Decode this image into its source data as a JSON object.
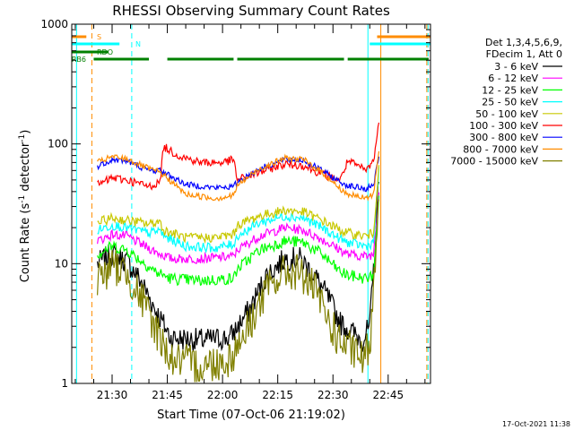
{
  "footer_timestamp": "17-Oct-2021 11:38",
  "chart_data": {
    "type": "line",
    "title": "RHESSI Observing Summary Count Rates",
    "xlabel": "Start Time (07-Oct-06 21:19:02)",
    "ylabel": "Count Rate (s⁻¹ detector⁻¹)",
    "ylabel_parts": {
      "base": "Count Rate (s",
      "sup1": "-1",
      "mid": " detector",
      "sup2": "-1",
      "end": ")"
    },
    "y_scale": "log",
    "ylim": [
      1,
      1000
    ],
    "xlim": [
      "21:19:02",
      "22:56:30"
    ],
    "x_ticks": [
      "21:30",
      "21:45",
      "22:00",
      "22:15",
      "22:30",
      "22:45"
    ],
    "y_ticks": [
      "1",
      "10",
      "100",
      "1000"
    ],
    "legend_header": [
      "Det 1,3,4,5,6,9,",
      "FDecim 1, Att 0"
    ],
    "legend_placement": "right",
    "series": [
      {
        "name": "3 - 6 keV",
        "color": "#000000",
        "noise": 0.1,
        "points": [
          [
            "21:26",
            10
          ],
          [
            "21:30",
            12
          ],
          [
            "21:34",
            10.5
          ],
          [
            "21:38",
            7
          ],
          [
            "21:42",
            4
          ],
          [
            "21:46",
            2.4
          ],
          [
            "21:54",
            2.3
          ],
          [
            "22:02",
            2.4
          ],
          [
            "22:07",
            4
          ],
          [
            "22:12",
            8
          ],
          [
            "22:17",
            11
          ],
          [
            "22:21",
            11
          ],
          [
            "22:25",
            8
          ],
          [
            "22:29",
            5
          ],
          [
            "22:32",
            3.2
          ],
          [
            "22:38",
            2.3
          ],
          [
            "22:40",
            3
          ],
          [
            "22:41.5",
            15
          ],
          [
            "22:42.5",
            60
          ]
        ]
      },
      {
        "name": "6 - 12 keV",
        "color": "#ff00ff",
        "noise": 0.04,
        "points": [
          [
            "21:26",
            15.5
          ],
          [
            "21:30",
            17.5
          ],
          [
            "21:34",
            17
          ],
          [
            "21:38",
            14.5
          ],
          [
            "21:42",
            12.5
          ],
          [
            "21:46",
            11
          ],
          [
            "21:54",
            11
          ],
          [
            "22:03",
            11.5
          ],
          [
            "22:04",
            13
          ],
          [
            "22:10",
            17
          ],
          [
            "22:17",
            20
          ],
          [
            "22:22",
            19
          ],
          [
            "22:27",
            16
          ],
          [
            "22:32",
            13
          ],
          [
            "22:34",
            12
          ],
          [
            "22:39",
            11.5
          ],
          [
            "22:41",
            12
          ],
          [
            "22:42.5",
            40
          ]
        ]
      },
      {
        "name": "12 - 25 keV",
        "color": "#00ff00",
        "noise": 0.05,
        "points": [
          [
            "21:26",
            12
          ],
          [
            "21:30",
            14
          ],
          [
            "21:34",
            13
          ],
          [
            "21:38",
            10.5
          ],
          [
            "21:42",
            8.5
          ],
          [
            "21:46",
            7.5
          ],
          [
            "21:54",
            7.2
          ],
          [
            "22:03",
            7.5
          ],
          [
            "22:04",
            9
          ],
          [
            "22:10",
            13
          ],
          [
            "22:17",
            15.5
          ],
          [
            "22:22",
            15
          ],
          [
            "22:27",
            12
          ],
          [
            "22:32",
            8.5
          ],
          [
            "22:34",
            8
          ],
          [
            "22:39",
            7.5
          ],
          [
            "22:41",
            8
          ],
          [
            "22:42.5",
            35
          ]
        ]
      },
      {
        "name": "25 - 50 keV",
        "color": "#00ffff",
        "noise": 0.04,
        "points": [
          [
            "21:26",
            19
          ],
          [
            "21:30",
            21
          ],
          [
            "21:34",
            20
          ],
          [
            "21:40",
            18
          ],
          [
            "21:43",
            19
          ],
          [
            "21:44",
            17
          ],
          [
            "21:50",
            14
          ],
          [
            "21:58",
            13.5
          ],
          [
            "22:03",
            14.5
          ],
          [
            "22:04",
            17
          ],
          [
            "22:10",
            22
          ],
          [
            "22:17",
            25
          ],
          [
            "22:22",
            24
          ],
          [
            "22:27",
            20
          ],
          [
            "22:32",
            16
          ],
          [
            "22:34",
            15
          ],
          [
            "22:39",
            14
          ],
          [
            "22:41",
            15
          ],
          [
            "22:42.5",
            60
          ]
        ]
      },
      {
        "name": "50 - 100 keV",
        "color": "#c8c800",
        "noise": 0.04,
        "points": [
          [
            "21:26",
            22
          ],
          [
            "21:30",
            24
          ],
          [
            "21:34",
            23
          ],
          [
            "21:40",
            21.5
          ],
          [
            "21:43",
            22.5
          ],
          [
            "21:44",
            19
          ],
          [
            "21:50",
            16.5
          ],
          [
            "21:58",
            16.5
          ],
          [
            "22:03",
            17.5
          ],
          [
            "22:04",
            21
          ],
          [
            "22:10",
            25
          ],
          [
            "22:17",
            28
          ],
          [
            "22:22",
            27
          ],
          [
            "22:27",
            23
          ],
          [
            "22:32",
            19
          ],
          [
            "22:34",
            18
          ],
          [
            "22:39",
            17
          ],
          [
            "22:41",
            18
          ],
          [
            "22:42.5",
            70
          ]
        ]
      },
      {
        "name": "100 - 300 keV",
        "color": "#ff0000",
        "noise": 0.035,
        "points": [
          [
            "21:26",
            45
          ],
          [
            "21:30",
            52
          ],
          [
            "21:34",
            50
          ],
          [
            "21:40",
            44
          ],
          [
            "21:43",
            48
          ],
          [
            "21:44",
            95
          ],
          [
            "21:48",
            80
          ],
          [
            "21:54",
            70
          ],
          [
            "22:00",
            70
          ],
          [
            "22:03",
            74
          ],
          [
            "22:04",
            50
          ],
          [
            "22:10",
            58
          ],
          [
            "22:17",
            68
          ],
          [
            "22:22",
            66
          ],
          [
            "22:27",
            56
          ],
          [
            "22:32",
            50
          ],
          [
            "22:34",
            72
          ],
          [
            "22:39",
            60
          ],
          [
            "22:41",
            72
          ],
          [
            "22:42.5",
            150
          ]
        ]
      },
      {
        "name": "300 - 800 keV",
        "color": "#0000ff",
        "noise": 0.025,
        "points": [
          [
            "21:26",
            65
          ],
          [
            "21:30",
            74
          ],
          [
            "21:34",
            72
          ],
          [
            "21:40",
            60
          ],
          [
            "21:43",
            60
          ],
          [
            "21:44",
            58
          ],
          [
            "21:50",
            46
          ],
          [
            "21:58",
            43
          ],
          [
            "22:03",
            44
          ],
          [
            "22:04",
            48
          ],
          [
            "22:10",
            62
          ],
          [
            "22:17",
            74
          ],
          [
            "22:22",
            73
          ],
          [
            "22:27",
            60
          ],
          [
            "22:32",
            48
          ],
          [
            "22:34",
            45
          ],
          [
            "22:39",
            42
          ],
          [
            "22:41",
            45
          ],
          [
            "22:42.5",
            80
          ]
        ]
      },
      {
        "name": "800 - 7000 keV",
        "color": "#ff8c00",
        "noise": 0.025,
        "points": [
          [
            "21:26",
            70
          ],
          [
            "21:30",
            78
          ],
          [
            "21:34",
            75
          ],
          [
            "21:40",
            62
          ],
          [
            "21:43",
            58
          ],
          [
            "21:44",
            55
          ],
          [
            "21:50",
            38
          ],
          [
            "21:58",
            35
          ],
          [
            "22:03",
            37
          ],
          [
            "22:04",
            45
          ],
          [
            "22:10",
            62
          ],
          [
            "22:17",
            76
          ],
          [
            "22:22",
            74
          ],
          [
            "22:27",
            58
          ],
          [
            "22:32",
            42
          ],
          [
            "22:34",
            38
          ],
          [
            "22:39",
            35
          ],
          [
            "22:41",
            38
          ],
          [
            "22:42.5",
            90
          ]
        ]
      },
      {
        "name": "7000 - 15000 keV",
        "color": "#808000",
        "noise": 0.16,
        "points": [
          [
            "21:26",
            7.5
          ],
          [
            "21:30",
            9.5
          ],
          [
            "21:34",
            8.5
          ],
          [
            "21:38",
            5
          ],
          [
            "21:42",
            2.8
          ],
          [
            "21:46",
            1.6
          ],
          [
            "21:54",
            1.4
          ],
          [
            "22:02",
            1.6
          ],
          [
            "22:07",
            3
          ],
          [
            "22:12",
            6
          ],
          [
            "22:17",
            8.5
          ],
          [
            "22:21",
            8.5
          ],
          [
            "22:25",
            6
          ],
          [
            "22:29",
            3.2
          ],
          [
            "22:32",
            2.2
          ],
          [
            "22:38",
            1.6
          ],
          [
            "22:40",
            2
          ],
          [
            "22:41.5",
            12
          ],
          [
            "22:42.5",
            40
          ]
        ]
      }
    ],
    "state_bars": [
      {
        "label": "S",
        "color": "#ff8c00",
        "row": 0,
        "segments": [
          [
            "21:19:02",
            "21:23"
          ],
          [
            "22:42",
            "22:56:30"
          ]
        ]
      },
      {
        "label": "N",
        "color": "#00ffff",
        "row": 1,
        "segments": [
          [
            "21:19:02",
            "21:32"
          ],
          [
            "22:40",
            "22:56:30"
          ]
        ]
      },
      {
        "label": "RDO",
        "color": "#008000",
        "row": 2,
        "segments": [
          [
            "21:19:02",
            "21:29"
          ]
        ]
      },
      {
        "label": "RB6",
        "color": "#008000",
        "row": 3,
        "segments": [
          [
            "21:25",
            "21:40"
          ],
          [
            "21:45",
            "22:03"
          ],
          [
            "22:04",
            "22:33"
          ],
          [
            "22:34",
            "22:56"
          ]
        ]
      }
    ],
    "vlines": [
      {
        "time": "21:20:20",
        "color": "#00ffff",
        "style": "solid"
      },
      {
        "time": "21:24:30",
        "color": "#ff8c00",
        "style": "dashed"
      },
      {
        "time": "21:35:20",
        "color": "#00ffff",
        "style": "dashed"
      },
      {
        "time": "22:39:30",
        "color": "#00ffff",
        "style": "solid"
      },
      {
        "time": "22:43:00",
        "color": "#ff8c00",
        "style": "solid"
      },
      {
        "time": "22:55:30",
        "color": "#ff8c00",
        "style": "dashed"
      },
      {
        "time": "22:55:50",
        "color": "#00ffff",
        "style": "dashed"
      }
    ]
  }
}
